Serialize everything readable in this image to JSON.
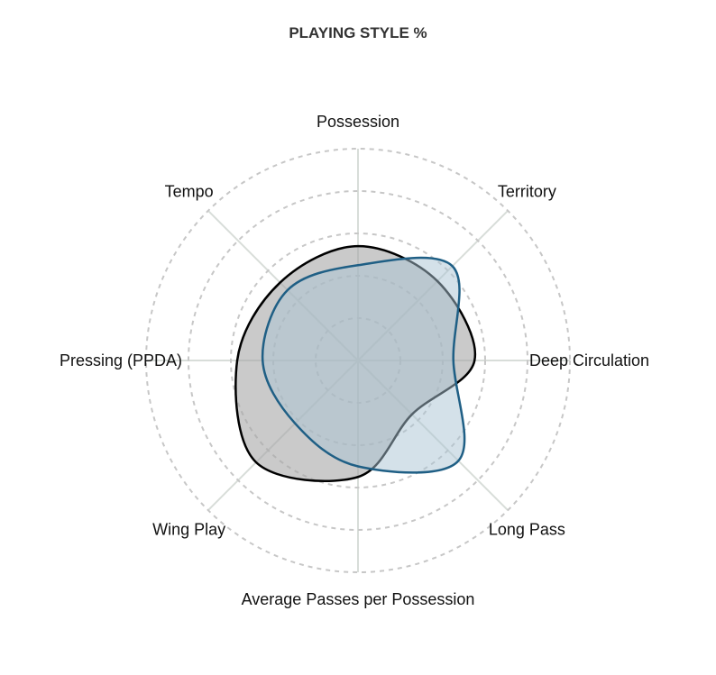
{
  "chart_data": {
    "type": "radar",
    "title": "PLAYING STYLE %",
    "axes": [
      "Possession",
      "Territory",
      "Deep Circulation",
      "Long Pass",
      "Average Passes per Possession",
      "Wing Play",
      "Pressing (PPDA)",
      "Tempo"
    ],
    "rlim": [
      0,
      100
    ],
    "rings": [
      20,
      40,
      60,
      80,
      100
    ],
    "grid": true,
    "legend": "none",
    "series": [
      {
        "values": [
          54,
          53,
          55,
          36,
          55,
          68,
          57,
          52
        ],
        "color": "#000000",
        "fill": "#a6a6a6"
      },
      {
        "values": [
          45,
          63,
          45,
          67,
          50,
          42,
          45,
          47
        ],
        "color": "#1f5f85",
        "fill": "#a9c3d3"
      }
    ]
  }
}
